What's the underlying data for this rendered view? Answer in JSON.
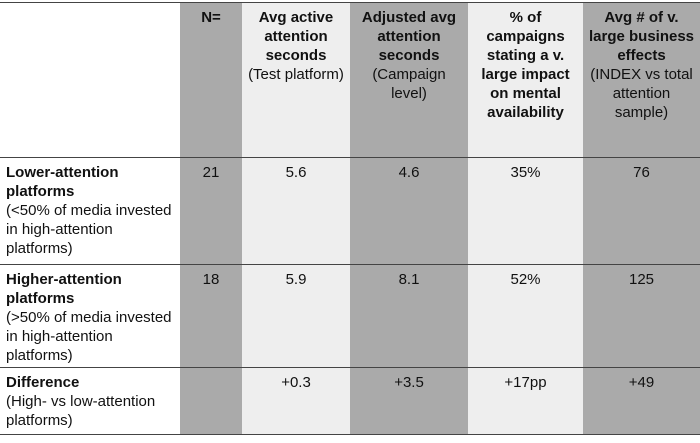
{
  "table": {
    "columns": [
      {
        "title": "N="
      },
      {
        "title": "Avg active attention seconds",
        "note": "(Test platform)"
      },
      {
        "title": "Adjusted avg attention seconds",
        "note": "(Campaign level)"
      },
      {
        "title": "% of campaigns stating a v. large impact on mental availability"
      },
      {
        "title": "Avg # of v. large business effects",
        "note": "(INDEX vs total attention sample)"
      }
    ],
    "rows": [
      {
        "label": "Lower-attention platforms",
        "note": "(<50% of media invested in high-attention platforms)",
        "cells": [
          "21",
          "5.6",
          "4.6",
          "35%",
          "76"
        ]
      },
      {
        "label": "Higher-attention platforms",
        "note": "(>50% of media invested in high-attention platforms)",
        "cells": [
          "18",
          "5.9",
          "8.1",
          "52%",
          "125"
        ]
      },
      {
        "label": "Difference",
        "note": "(High- vs low-attention platforms)",
        "cells": [
          null,
          "+0.3",
          "+3.5",
          "+17pp",
          "+49"
        ]
      }
    ]
  }
}
